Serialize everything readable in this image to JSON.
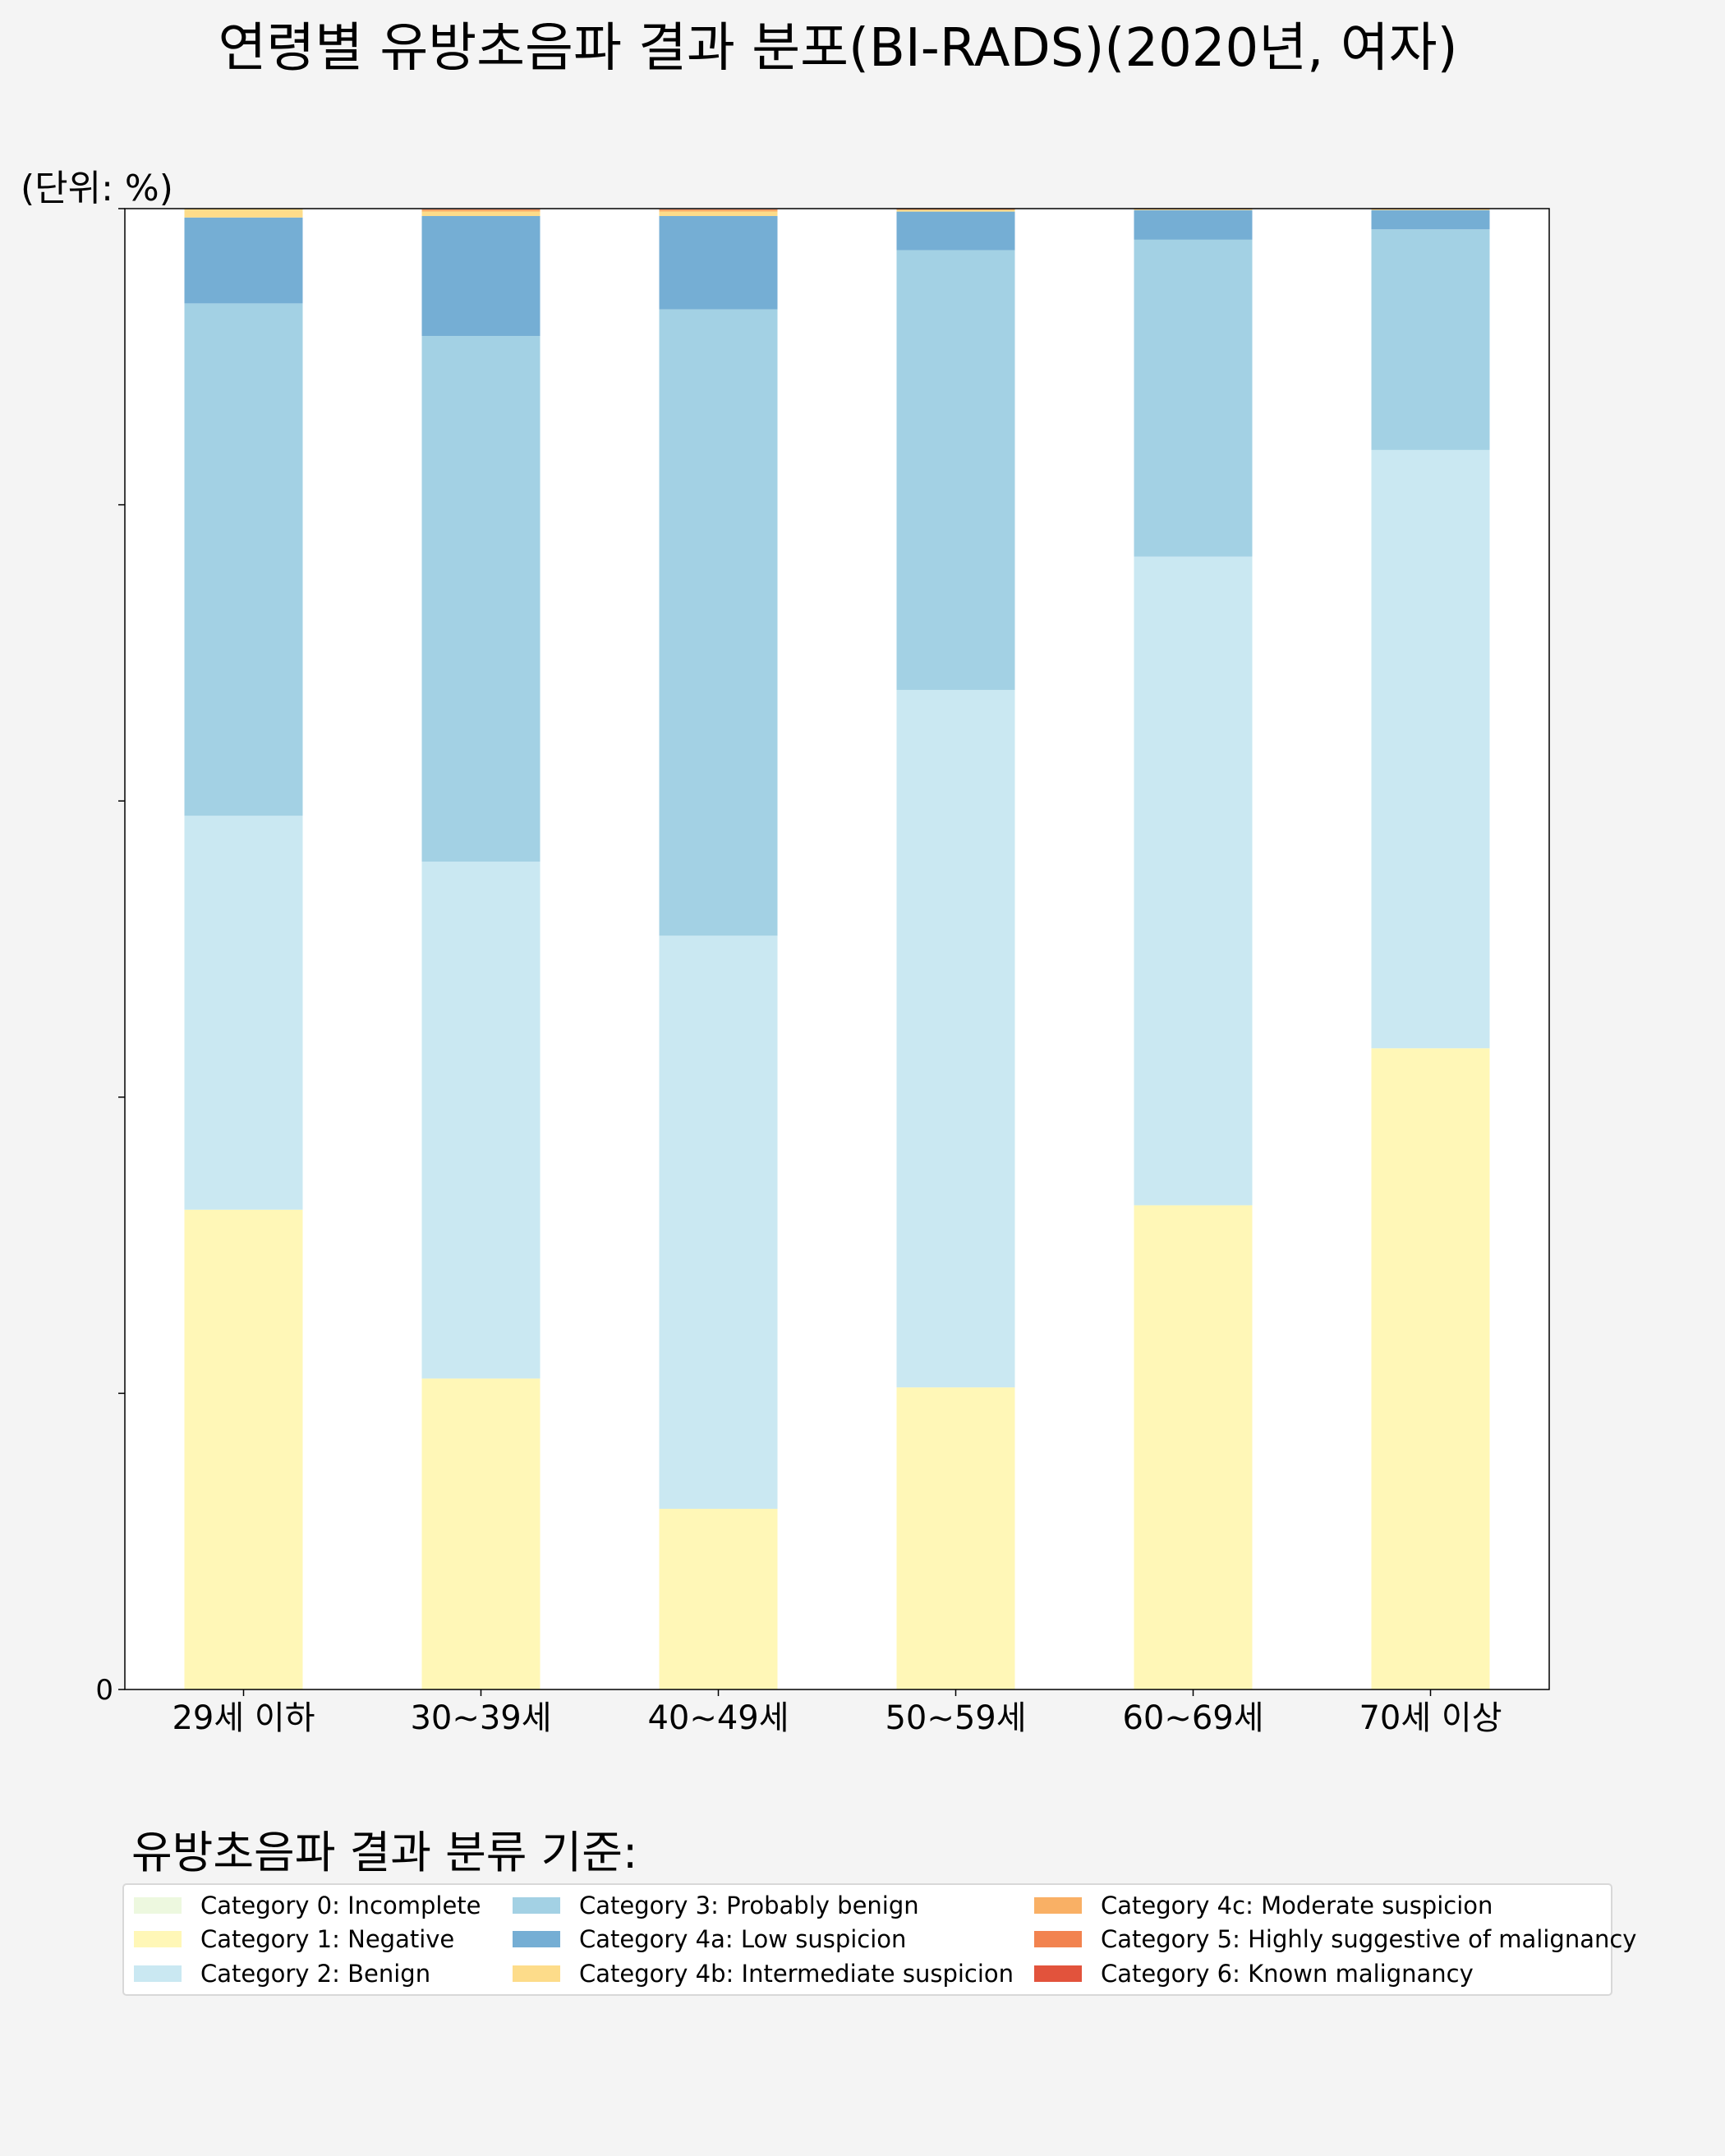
{
  "title": "연령별 유방초음파 결과 분포(BI-RADS)(2020년, 여자)",
  "unit_label": "(단위: %)",
  "legend_title": "유방초음파 결과 분류 기준:",
  "colors": {
    "background": "#f4f4f4",
    "plot_background": "#ffffff",
    "axis": "#000000"
  },
  "chart_data": {
    "type": "bar",
    "stacked": true,
    "categories": [
      "29세 이하",
      "30~39세",
      "40~49세",
      "50~59세",
      "60~69세",
      "70세 이상"
    ],
    "ylim": [
      0,
      100
    ],
    "yticks": [
      0,
      20,
      40,
      60,
      80,
      100
    ],
    "ytick_labels": [
      "0",
      "",
      "",
      "",
      "",
      ""
    ],
    "grid": false,
    "legend_position": "bottom",
    "series": [
      {
        "name": "Category 0: Incomplete",
        "color": "#edf8df",
        "values": [
          0.0,
          0.0,
          0.0,
          0.0,
          0.0,
          0.0
        ]
      },
      {
        "name": "Category 1: Negative",
        "color": "#fff7b7",
        "values": [
          32.4,
          21.0,
          12.2,
          20.4,
          32.7,
          43.3
        ]
      },
      {
        "name": "Category 2: Benign",
        "color": "#cae8f2",
        "values": [
          26.6,
          34.9,
          38.7,
          47.1,
          43.8,
          40.4
        ]
      },
      {
        "name": "Category 3: Probably benign",
        "color": "#a3d1e4",
        "values": [
          34.6,
          35.5,
          42.3,
          29.7,
          21.4,
          14.9
        ]
      },
      {
        "name": "Category 4a: Low suspicion",
        "color": "#75aed4",
        "values": [
          5.8,
          8.1,
          6.3,
          2.6,
          2.0,
          1.3
        ]
      },
      {
        "name": "Category 4b: Intermediate suspicion",
        "color": "#fddc8a",
        "values": [
          0.6,
          0.3,
          0.3,
          0.1,
          0.05,
          0.05
        ]
      },
      {
        "name": "Category 4c: Moderate suspicion",
        "color": "#f9b065",
        "values": [
          0.0,
          0.1,
          0.1,
          0.05,
          0.05,
          0.05
        ]
      },
      {
        "name": "Category 5: Highly suggestive of malignancy",
        "color": "#f2834f",
        "values": [
          0.0,
          0.05,
          0.05,
          0.03,
          0.03,
          0.03
        ]
      },
      {
        "name": "Category 6: Known malignancy",
        "color": "#e2533c",
        "values": [
          0.0,
          0.0,
          0.0,
          0.0,
          0.0,
          0.0
        ]
      }
    ]
  }
}
